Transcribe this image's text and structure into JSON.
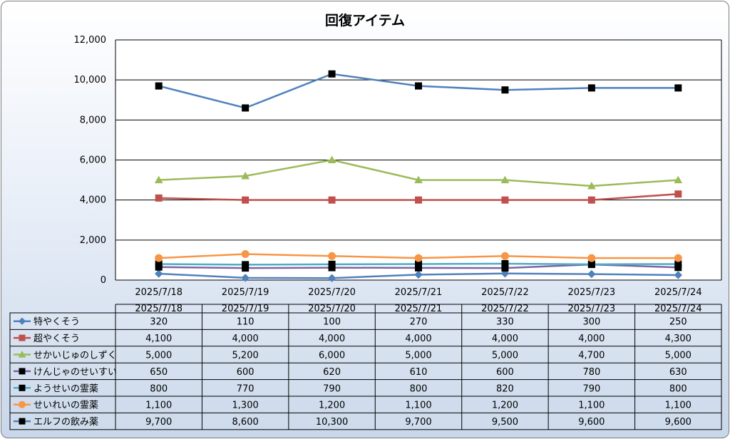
{
  "chart_data": {
    "type": "line",
    "title": "回復アイテム",
    "categories": [
      "2025/7/18",
      "2025/7/19",
      "2025/7/20",
      "2025/7/21",
      "2025/7/22",
      "2025/7/23",
      "2025/7/24"
    ],
    "ylim": [
      0,
      12000
    ],
    "yticks": [
      "0",
      "2,000",
      "4,000",
      "6,000",
      "8,000",
      "10,000",
      "12,000"
    ],
    "grid": true,
    "legend": "data-table-below",
    "series": [
      {
        "name": "特やくそう",
        "color": "#4f81bd",
        "marker": "diamond",
        "values": [
          320,
          110,
          100,
          270,
          330,
          300,
          250
        ],
        "labels": [
          "320",
          "110",
          "100",
          "270",
          "330",
          "300",
          "250"
        ]
      },
      {
        "name": "超やくそう",
        "color": "#c0504d",
        "marker": "square",
        "values": [
          4100,
          4000,
          4000,
          4000,
          4000,
          4000,
          4300
        ],
        "labels": [
          "4,100",
          "4,000",
          "4,000",
          "4,000",
          "4,000",
          "4,000",
          "4,300"
        ]
      },
      {
        "name": "せかいじゅのしずく",
        "color": "#9bbb59",
        "marker": "triangle",
        "values": [
          5000,
          5200,
          6000,
          5000,
          5000,
          4700,
          5000
        ],
        "labels": [
          "5,000",
          "5,200",
          "6,000",
          "5,000",
          "5,000",
          "4,700",
          "5,000"
        ]
      },
      {
        "name": "けんじゃのせいすい",
        "color": "#8064a2",
        "marker": "blacksquare",
        "values": [
          650,
          600,
          620,
          610,
          600,
          780,
          630
        ],
        "labels": [
          "650",
          "600",
          "620",
          "610",
          "600",
          "780",
          "630"
        ]
      },
      {
        "name": "ようせいの霊薬",
        "color": "#4bacc6",
        "marker": "blacksquare",
        "values": [
          800,
          770,
          790,
          800,
          820,
          790,
          800
        ],
        "labels": [
          "800",
          "770",
          "790",
          "800",
          "820",
          "790",
          "800"
        ]
      },
      {
        "name": "せいれいの霊薬",
        "color": "#f79646",
        "marker": "circle",
        "values": [
          1100,
          1300,
          1200,
          1100,
          1200,
          1100,
          1100
        ],
        "labels": [
          "1,100",
          "1,300",
          "1,200",
          "1,100",
          "1,200",
          "1,100",
          "1,100"
        ]
      },
      {
        "name": "エルフの飲み薬",
        "color": "#4f81bd",
        "marker": "blacksquare",
        "values": [
          9700,
          8600,
          10300,
          9700,
          9500,
          9600,
          9600
        ],
        "labels": [
          "9,700",
          "8,600",
          "10,300",
          "9,700",
          "9,500",
          "9,600",
          "9,600"
        ]
      }
    ]
  }
}
